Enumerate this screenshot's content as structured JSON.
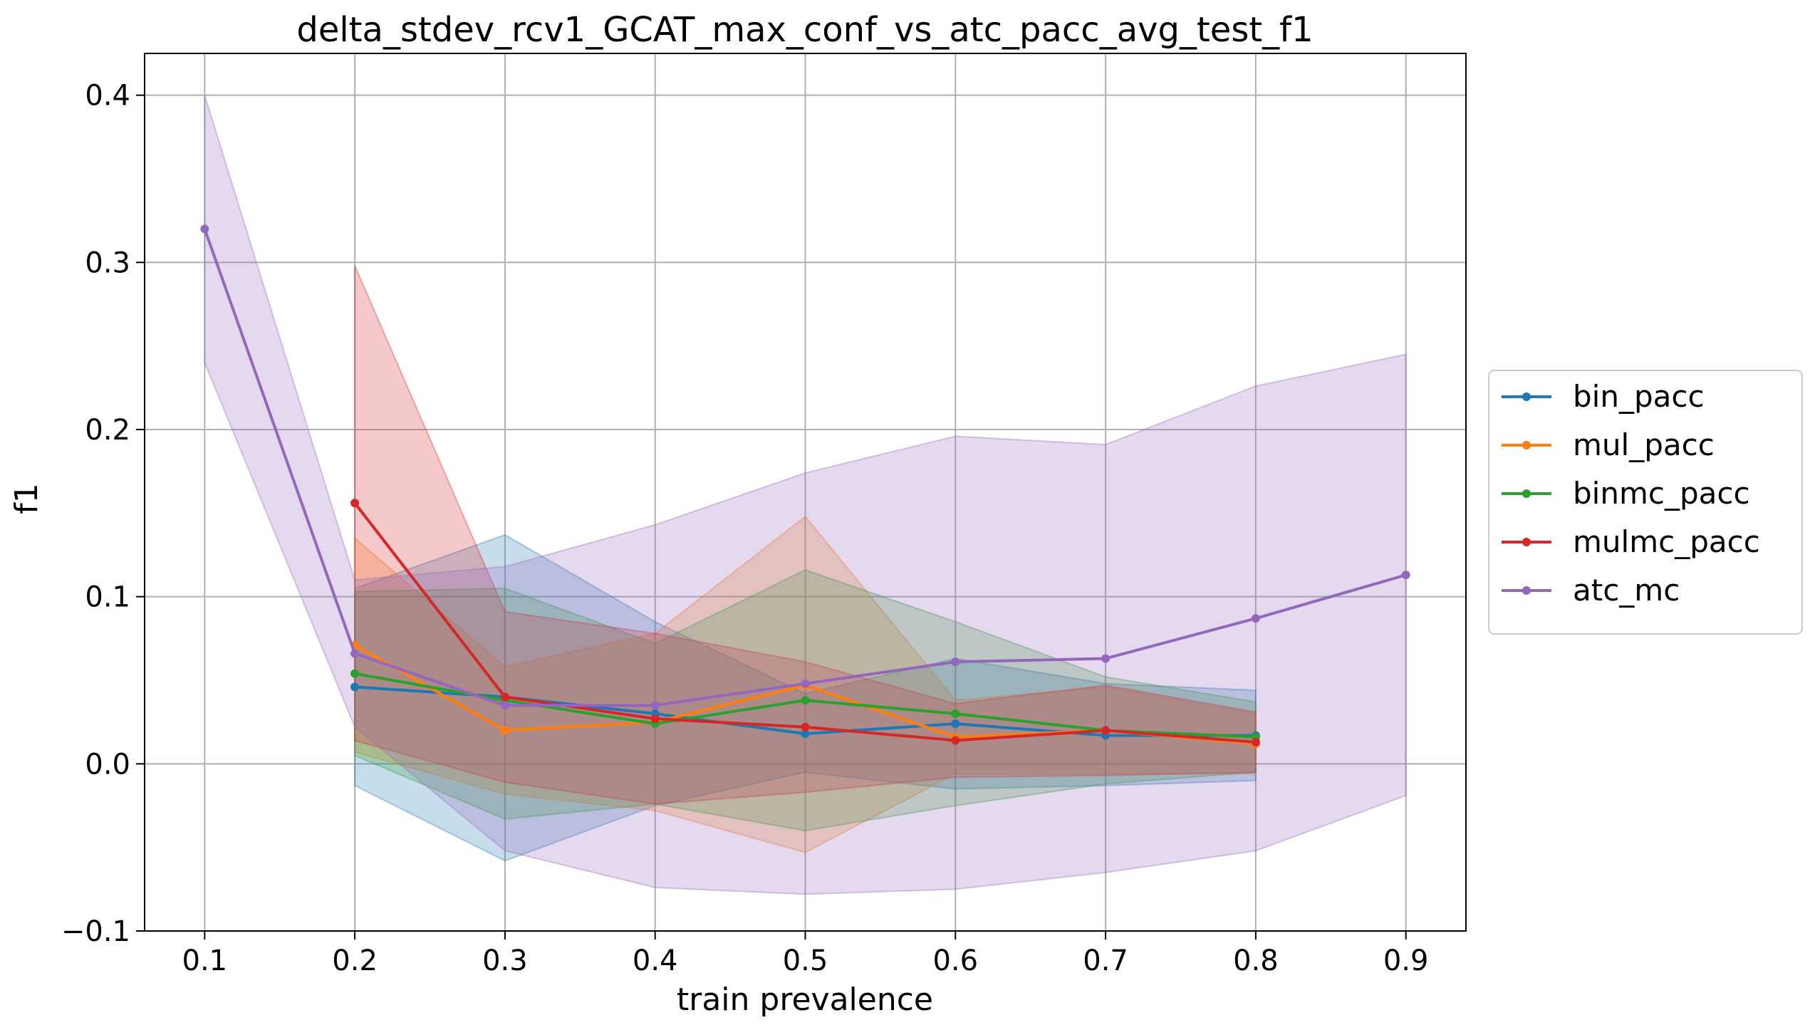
{
  "chart_data": {
    "type": "line",
    "title": "delta_stdev_rcv1_GCAT_max_conf_vs_atc_pacc_avg_test_f1",
    "xlabel": "train prevalence",
    "ylabel": "f1",
    "xlim": [
      0.06,
      0.94
    ],
    "ylim": [
      -0.1,
      0.425
    ],
    "xticks": [
      "0.1",
      "0.2",
      "0.3",
      "0.4",
      "0.5",
      "0.6",
      "0.7",
      "0.8",
      "0.9"
    ],
    "yticks": [
      "−0.1",
      "0.0",
      "0.1",
      "0.2",
      "0.3",
      "0.4"
    ],
    "grid": true,
    "legend_position": "center-right outside",
    "series": [
      {
        "name": "bin_pacc",
        "color": "#1f77b4",
        "x": [
          0.2,
          0.3,
          0.4,
          0.5,
          0.6,
          0.7,
          0.8
        ],
        "y": [
          0.046,
          0.04,
          0.03,
          0.018,
          0.024,
          0.017,
          0.017
        ],
        "upper": [
          0.105,
          0.137,
          0.085,
          0.042,
          0.063,
          0.048,
          0.044
        ],
        "lower": [
          -0.013,
          -0.058,
          -0.025,
          -0.005,
          -0.015,
          -0.013,
          -0.01
        ]
      },
      {
        "name": "mul_pacc",
        "color": "#ff7f0e",
        "x": [
          0.2,
          0.3,
          0.4,
          0.5,
          0.6,
          0.7,
          0.8
        ],
        "y": [
          0.071,
          0.02,
          0.025,
          0.047,
          0.016,
          0.02,
          0.012
        ],
        "upper": [
          0.135,
          0.058,
          0.078,
          0.148,
          0.038,
          0.046,
          0.03
        ],
        "lower": [
          0.007,
          -0.018,
          -0.028,
          -0.053,
          -0.006,
          -0.006,
          -0.006
        ]
      },
      {
        "name": "binmc_pacc",
        "color": "#2ca02c",
        "x": [
          0.2,
          0.3,
          0.4,
          0.5,
          0.6,
          0.7,
          0.8
        ],
        "y": [
          0.054,
          0.038,
          0.024,
          0.038,
          0.03,
          0.02,
          0.016
        ],
        "upper": [
          0.103,
          0.105,
          0.072,
          0.116,
          0.085,
          0.052,
          0.037
        ],
        "lower": [
          0.005,
          -0.033,
          -0.024,
          -0.04,
          -0.025,
          -0.012,
          -0.005
        ]
      },
      {
        "name": "mulmc_pacc",
        "color": "#d62728",
        "x": [
          0.2,
          0.3,
          0.4,
          0.5,
          0.6,
          0.7,
          0.8
        ],
        "y": [
          0.156,
          0.04,
          0.027,
          0.022,
          0.014,
          0.02,
          0.013
        ],
        "upper": [
          0.298,
          0.091,
          0.078,
          0.061,
          0.036,
          0.047,
          0.031
        ],
        "lower": [
          0.014,
          -0.011,
          -0.024,
          -0.017,
          -0.008,
          -0.007,
          -0.005
        ]
      },
      {
        "name": "atc_mc",
        "color": "#9467bd",
        "x": [
          0.1,
          0.2,
          0.3,
          0.4,
          0.5,
          0.6,
          0.7,
          0.8,
          0.9
        ],
        "y": [
          0.32,
          0.066,
          0.035,
          0.035,
          0.048,
          0.061,
          0.063,
          0.087,
          0.113
        ],
        "upper": [
          0.4,
          0.11,
          0.118,
          0.143,
          0.174,
          0.196,
          0.191,
          0.226,
          0.245
        ],
        "lower": [
          0.24,
          0.022,
          -0.052,
          -0.074,
          -0.078,
          -0.075,
          -0.065,
          -0.052,
          -0.019
        ]
      }
    ]
  }
}
